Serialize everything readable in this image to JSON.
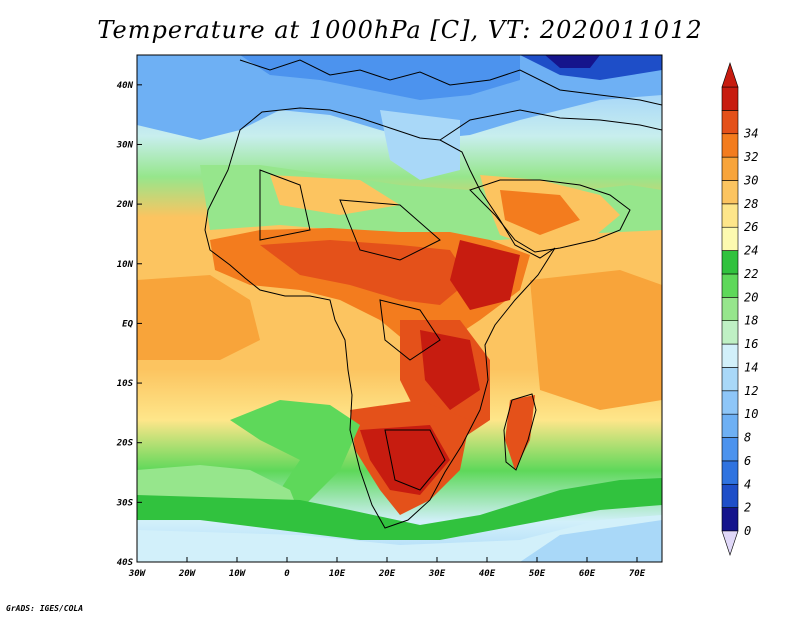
{
  "title": "Temperature at 1000hPa [C], VT: 2020011012",
  "credit": "GrADS: IGES/COLA",
  "map": {
    "lon_range": [
      -30,
      75
    ],
    "lat_range": [
      -40,
      45
    ],
    "lat_ticks": [
      {
        "value": 40,
        "label": "40N"
      },
      {
        "value": 30,
        "label": "30N"
      },
      {
        "value": 20,
        "label": "20N"
      },
      {
        "value": 10,
        "label": "10N"
      },
      {
        "value": 0,
        "label": "EQ"
      },
      {
        "value": -10,
        "label": "10S"
      },
      {
        "value": -20,
        "label": "20S"
      },
      {
        "value": -30,
        "label": "30S"
      },
      {
        "value": -40,
        "label": "40S"
      }
    ],
    "lon_ticks": [
      {
        "value": -30,
        "label": "30W"
      },
      {
        "value": -20,
        "label": "20W"
      },
      {
        "value": -10,
        "label": "10W"
      },
      {
        "value": 0,
        "label": "0"
      },
      {
        "value": 10,
        "label": "10E"
      },
      {
        "value": 20,
        "label": "20E"
      },
      {
        "value": 30,
        "label": "30E"
      },
      {
        "value": 40,
        "label": "40E"
      },
      {
        "value": 50,
        "label": "50E"
      },
      {
        "value": 60,
        "label": "60E"
      },
      {
        "value": 70,
        "label": "70E"
      }
    ]
  },
  "colorbar": {
    "levels": [
      "0",
      "2",
      "4",
      "6",
      "8",
      "10",
      "12",
      "14",
      "16",
      "18",
      "20",
      "22",
      "24",
      "26",
      "28",
      "30",
      "32",
      "34"
    ],
    "colors": [
      "#15148c",
      "#1e4ec8",
      "#2f73e0",
      "#4c93ee",
      "#6eb0f4",
      "#8ec6f8",
      "#a9d8f8",
      "#d2f0fa",
      "#bff0c4",
      "#96e68c",
      "#5ed85a",
      "#31c23e",
      "#fdfab0",
      "#fee68a",
      "#fcc460",
      "#f8a43a",
      "#f37c1e",
      "#e4511a",
      "#c71c10"
    ],
    "under_color": "#e0d8f8"
  }
}
